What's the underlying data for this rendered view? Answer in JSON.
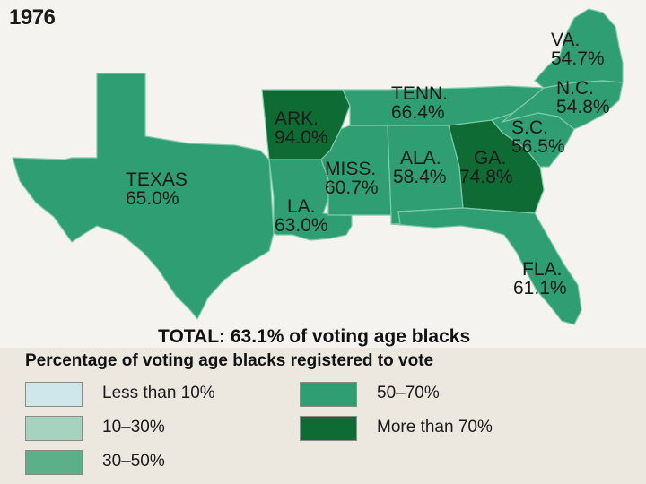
{
  "map": {
    "year": "1976",
    "states": [
      {
        "id": "va",
        "name": "VA.",
        "value": "54.7%",
        "category": "50-70"
      },
      {
        "id": "nc",
        "name": "N.C.",
        "value": "54.8%",
        "category": "50-70"
      },
      {
        "id": "sc",
        "name": "S.C.",
        "value": "56.5%",
        "category": "50-70"
      },
      {
        "id": "tenn",
        "name": "TENN.",
        "value": "66.4%",
        "category": "50-70"
      },
      {
        "id": "ark",
        "name": "ARK.",
        "value": "94.0%",
        "category": "more-than-70"
      },
      {
        "id": "ga",
        "name": "GA.",
        "value": "74.8%",
        "category": "more-than-70"
      },
      {
        "id": "ala",
        "name": "ALA.",
        "value": "58.4%",
        "category": "50-70"
      },
      {
        "id": "miss",
        "name": "MISS.",
        "value": "60.7%",
        "category": "50-70"
      },
      {
        "id": "la",
        "name": "LA.",
        "value": "63.0%",
        "category": "50-70"
      },
      {
        "id": "texas",
        "name": "TEXAS",
        "value": "65.0%",
        "category": "50-70"
      },
      {
        "id": "fla",
        "name": "FLA.",
        "value": "61.1%",
        "category": "50-70"
      }
    ],
    "total": "TOTAL: 63.1% of voting age blacks"
  },
  "legend": {
    "title": "Percentage of voting age blacks registered to vote",
    "items": [
      {
        "label": "Less than 10%",
        "color": "#cfe6ea"
      },
      {
        "label": "10–30%",
        "color": "#a6d3bf"
      },
      {
        "label": "30–50%",
        "color": "#5bb08a"
      },
      {
        "label": "50–70%",
        "color": "#2f9e72"
      },
      {
        "label": "More than 70%",
        "color": "#0f6b34"
      }
    ]
  },
  "colors": {
    "mid_green": "#2f9e72",
    "dark_green": "#0f6b34",
    "border": "#7fcaa6"
  }
}
